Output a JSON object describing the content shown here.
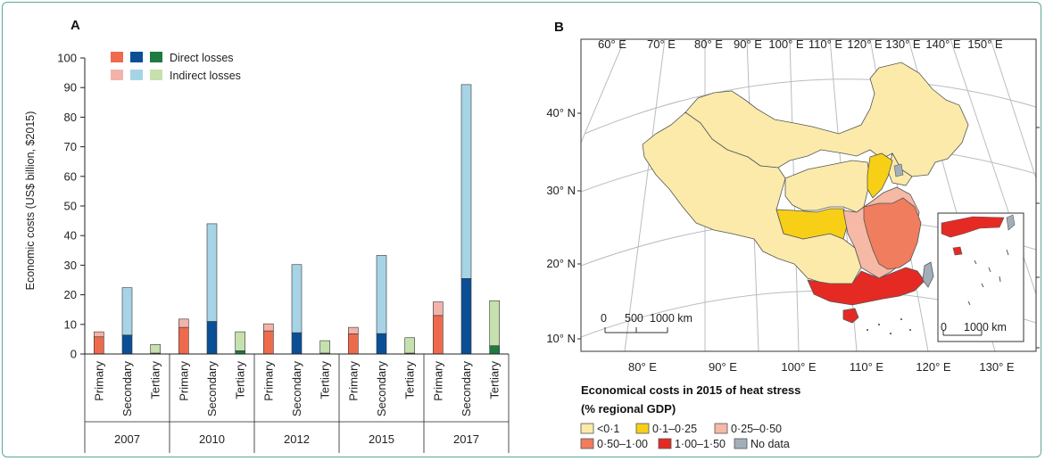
{
  "panels": {
    "a_label": "A",
    "b_label": "B"
  },
  "colors": {
    "primary_direct": "#ee6a4d",
    "primary_indirect": "#f2b3aa",
    "secondary_direct": "#0a4f96",
    "secondary_indirect": "#a6d4e6",
    "tertiary_direct": "#1e7a40",
    "tertiary_indirect": "#c6e0ae",
    "map_lt01": "#fbeaaa",
    "map_01_025": "#f7cf17",
    "map_025_05": "#f5b9a5",
    "map_05_1": "#ef7d5e",
    "map_1_15": "#e52a24",
    "map_nodata": "#a3afb8",
    "map_sea": "#ffffff",
    "graticule": "#b9bcc0",
    "frame_border": "#5aa89a"
  },
  "chart_data": [
    {
      "type": "bar",
      "stacked": true,
      "title": "",
      "xlabel": "",
      "ylabel": "Economic costs (US$ billion, $2015)",
      "ylim": [
        0,
        100
      ],
      "yticks": [
        0,
        10,
        20,
        30,
        40,
        50,
        60,
        70,
        80,
        90,
        100
      ],
      "grid": false,
      "legend_position": "top-left",
      "legend": [
        {
          "label": "Direct losses",
          "colors": [
            "primary_direct",
            "secondary_direct",
            "tertiary_direct"
          ]
        },
        {
          "label": "Indirect losses",
          "colors": [
            "primary_indirect",
            "secondary_indirect",
            "tertiary_indirect"
          ]
        }
      ],
      "groups": [
        "2007",
        "2010",
        "2012",
        "2015",
        "2017"
      ],
      "sectors": [
        "Primary",
        "Secondary",
        "Tertiary"
      ],
      "series": [
        {
          "name": "Direct losses",
          "values": {
            "2007": [
              5.8,
              6.4,
              0.3
            ],
            "2010": [
              9.0,
              11.0,
              1.1
            ],
            "2012": [
              7.8,
              7.2,
              0.3
            ],
            "2015": [
              6.8,
              6.9,
              0.3
            ],
            "2017": [
              13.0,
              25.5,
              2.8
            ]
          }
        },
        {
          "name": "Indirect losses",
          "values": {
            "2007": [
              1.7,
              16.0,
              2.9
            ],
            "2010": [
              2.8,
              33.0,
              6.4
            ],
            "2012": [
              2.4,
              23.0,
              4.2
            ],
            "2015": [
              2.2,
              26.4,
              5.2
            ],
            "2017": [
              4.6,
              65.5,
              15.2
            ]
          }
        }
      ]
    },
    {
      "type": "map",
      "title": "Economical costs in 2015 of heat stress",
      "subtitle": "(% regional GDP)",
      "top_lon_ticks": [
        "60° E",
        "70° E",
        "80° E",
        "90° E",
        "100° E",
        "110° E",
        "120° E",
        "130° E",
        "140° E",
        "150° E"
      ],
      "bottom_lon_ticks": [
        "80° E",
        "90° E",
        "100° E",
        "110° E",
        "120° E",
        "130° E"
      ],
      "lat_ticks": [
        "40° N",
        "30° N",
        "20° N",
        "10° N"
      ],
      "scalebar": {
        "labels": [
          "0",
          "500",
          "1000 km"
        ]
      },
      "inset_scalebar": {
        "labels": [
          "0",
          "1000 km"
        ]
      },
      "legend": [
        {
          "label": "<0·1",
          "color": "map_lt01"
        },
        {
          "label": "0·1–0·25",
          "color": "map_01_025"
        },
        {
          "label": "0·25–0·50",
          "color": "map_025_05"
        },
        {
          "label": "0·50–1·00",
          "color": "map_05_1"
        },
        {
          "label": "1·00–1·50",
          "color": "map_1_15"
        },
        {
          "label": "No data",
          "color": "map_nodata"
        }
      ]
    }
  ]
}
